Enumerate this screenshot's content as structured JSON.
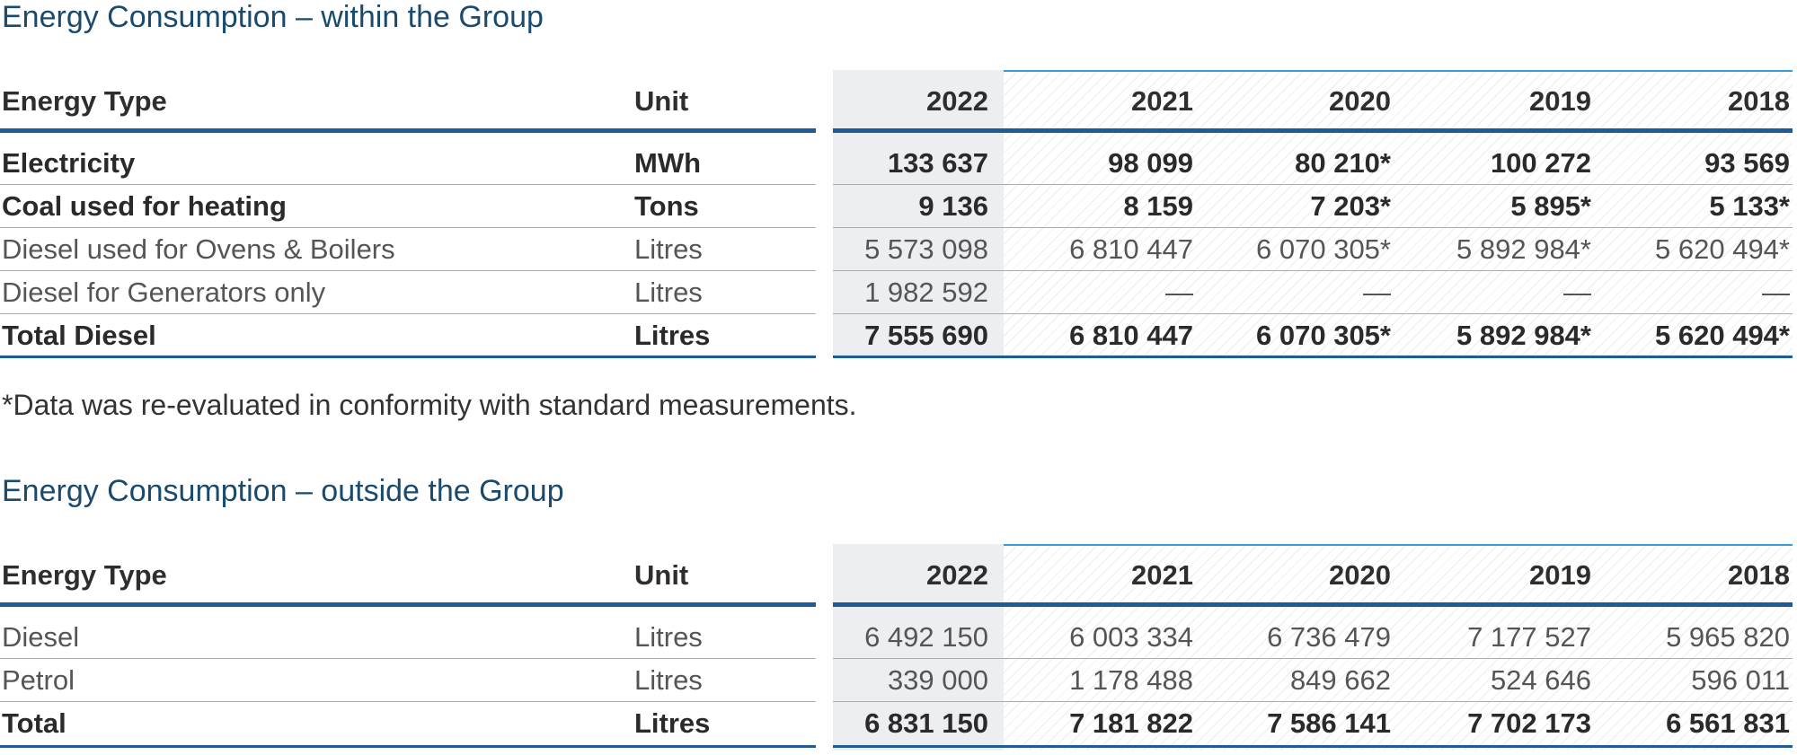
{
  "tables": [
    {
      "title": "Energy Consumption – within the Group",
      "header": {
        "type": "Energy Type",
        "unit": "Unit",
        "years": [
          "2022",
          "2021",
          "2020",
          "2019",
          "2018"
        ]
      },
      "rows": [
        {
          "type": "Electricity",
          "unit": "MWh",
          "values": [
            "133 637",
            "98 099",
            "80 210*",
            "100 272",
            "93 569"
          ],
          "style": "bold"
        },
        {
          "type": "Coal used for heating",
          "unit": "Tons",
          "values": [
            "9 136",
            "8 159",
            "7 203*",
            "5 895*",
            "5 133*"
          ],
          "style": "bold"
        },
        {
          "type": "Diesel used for Ovens & Boilers",
          "unit": "Litres",
          "values": [
            "5 573 098",
            "6 810 447",
            "6 070 305*",
            "5 892 984*",
            "5 620 494*"
          ],
          "style": "light"
        },
        {
          "type": "Diesel for Generators only",
          "unit": "Litres",
          "values": [
            "1 982 592",
            "—",
            "—",
            "—",
            "—"
          ],
          "style": "light"
        },
        {
          "type": "Total Diesel",
          "unit": "Litres",
          "values": [
            "7 555 690",
            "6 810 447",
            "6 070 305*",
            "5 892 984*",
            "5 620 494*"
          ],
          "style": "bold"
        }
      ]
    },
    {
      "title": "Energy Consumption – outside the Group",
      "header": {
        "type": "Energy Type",
        "unit": "Unit",
        "years": [
          "2022",
          "2021",
          "2020",
          "2019",
          "2018"
        ]
      },
      "rows": [
        {
          "type": "Diesel",
          "unit": "Litres",
          "values": [
            "6 492 150",
            "6 003 334",
            "6 736 479",
            "7 177 527",
            "5 965 820"
          ],
          "style": "light"
        },
        {
          "type": "Petrol",
          "unit": "Litres",
          "values": [
            "339 000",
            "1 178 488",
            "849 662",
            "524 646",
            "596 011"
          ],
          "style": "light"
        },
        {
          "type": "Total",
          "unit": "Litres",
          "values": [
            "6 831 150",
            "7 181 822",
            "7 586 141",
            "7 702 173",
            "6 561 831"
          ],
          "style": "bold"
        }
      ]
    }
  ],
  "footnote": "*Data was re-evaluated in conformity with standard measurements."
}
